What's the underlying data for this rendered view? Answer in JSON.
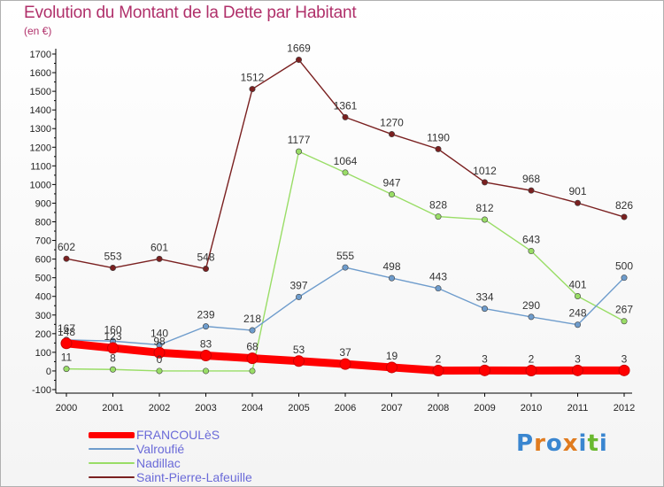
{
  "title": "Evolution du Montant de la Dette par Habitant",
  "subtitle": "(en €)",
  "chart_data": {
    "type": "line",
    "title": "Evolution du Montant de la Dette par Habitant",
    "subtitle": "(en €)",
    "xlabel": "",
    "ylabel": "",
    "ylim": [
      -100,
      1700
    ],
    "yticks": [
      -100,
      0,
      100,
      200,
      300,
      400,
      500,
      600,
      700,
      800,
      900,
      1000,
      1100,
      1200,
      1300,
      1400,
      1500,
      1600,
      1700
    ],
    "categories": [
      "2000",
      "2001",
      "2002",
      "2003",
      "2004",
      "2005",
      "2006",
      "2007",
      "2008",
      "2009",
      "2010",
      "2011",
      "2012"
    ],
    "grid": false,
    "legend_position": "bottom-left",
    "series": [
      {
        "name": "FRANCOULèS",
        "color": "#ff0000",
        "values": [
          148,
          123,
          98,
          83,
          68,
          53,
          37,
          19,
          2,
          3,
          2,
          3,
          3
        ],
        "labels": [
          "148",
          "123",
          "98",
          "83",
          "68",
          "53",
          "37",
          "19",
          "2",
          "3",
          "2",
          "3",
          "3"
        ]
      },
      {
        "name": "Valroufié",
        "color": "#6e9ccc",
        "values": [
          167,
          160,
          140,
          239,
          218,
          397,
          555,
          498,
          443,
          334,
          290,
          248,
          500
        ],
        "labels": [
          "167",
          "160",
          "140",
          "239",
          "218",
          "397",
          "555",
          "498",
          "443",
          "334",
          "290",
          "248",
          "500"
        ]
      },
      {
        "name": "Nadillac",
        "color": "#99dd66",
        "values": [
          11,
          8,
          0,
          0,
          0,
          1177,
          1064,
          947,
          828,
          812,
          643,
          401,
          267
        ],
        "labels": [
          "11",
          "8",
          "0",
          "",
          "",
          "1177",
          "1064",
          "947",
          "828",
          "812",
          "643",
          "401",
          "267"
        ]
      },
      {
        "name": "Saint-Pierre-Lafeuille",
        "color": "#7a2020",
        "values": [
          602,
          553,
          601,
          548,
          1512,
          1669,
          1361,
          1270,
          1190,
          1012,
          968,
          901,
          826
        ],
        "labels": [
          "602",
          "553",
          "601",
          "548",
          "1512",
          "1669",
          "1361",
          "1270",
          "1190",
          "1012",
          "968",
          "901",
          "826"
        ]
      }
    ]
  },
  "legend": [
    {
      "label": "FRANCOULèS"
    },
    {
      "label": "Valroufié"
    },
    {
      "label": "Nadillac"
    },
    {
      "label": "Saint-Pierre-Lafeuille"
    }
  ],
  "logo": {
    "letters": [
      "P",
      "r",
      "o",
      "x",
      "i",
      "t",
      "i"
    ],
    "colors": [
      "#3a86d0",
      "#e07b1f",
      "#3a86d0",
      "#e07b1f",
      "#3a86d0",
      "#6ab82f",
      "#3a86d0"
    ]
  }
}
